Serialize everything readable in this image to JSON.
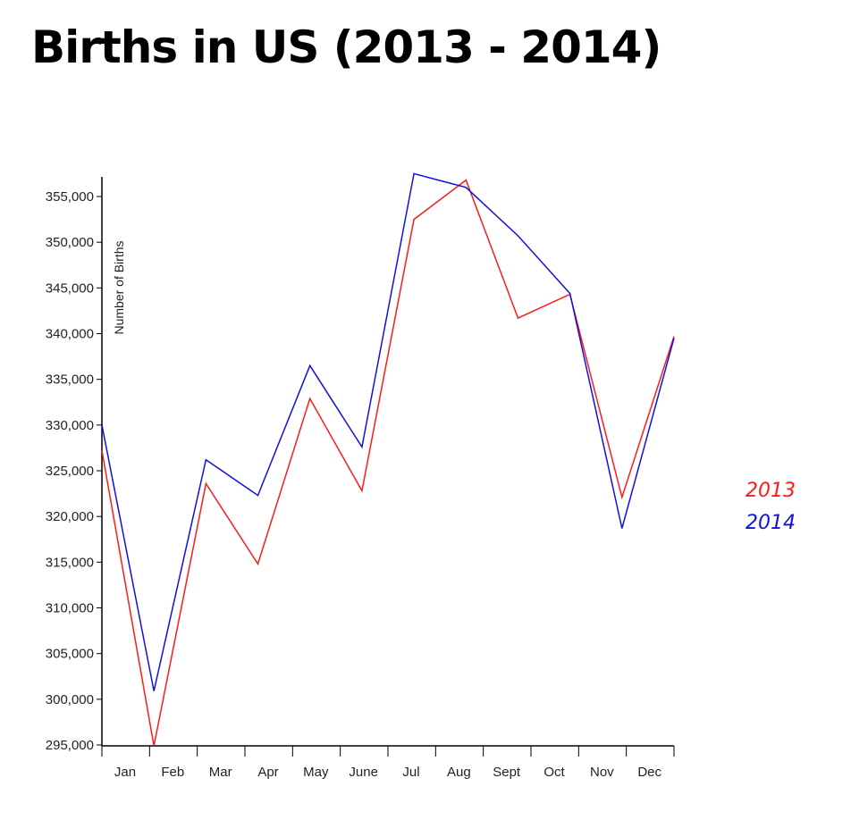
{
  "chart_data": {
    "type": "line",
    "title": "Births in US (2013 - 2014)",
    "xlabel": "",
    "ylabel": "Number of Births",
    "categories": [
      "Jan",
      "Feb",
      "Mar",
      "Apr",
      "May",
      "June",
      "Jul",
      "Aug",
      "Sept",
      "Oct",
      "Nov",
      "Dec"
    ],
    "yticks": [
      "295,000",
      "300,000",
      "305,000",
      "310,000",
      "315,000",
      "320,000",
      "325,000",
      "330,000",
      "335,000",
      "340,000",
      "345,000",
      "350,000",
      "355,000"
    ],
    "ylim": [
      295000,
      357500
    ],
    "series": [
      {
        "name": "2013",
        "color": "#ff1a1a",
        "values": [
          327200,
          294900,
          323600,
          314800,
          332900,
          322800,
          352500,
          356800,
          341700,
          344300,
          322100,
          339700
        ]
      },
      {
        "name": "2014",
        "color": "#1010e0",
        "values": [
          330000,
          300900,
          326200,
          322300,
          336500,
          327600,
          357500,
          356000,
          350700,
          344400,
          318700,
          339500
        ]
      }
    ],
    "legend_position": "right",
    "grid": false
  }
}
